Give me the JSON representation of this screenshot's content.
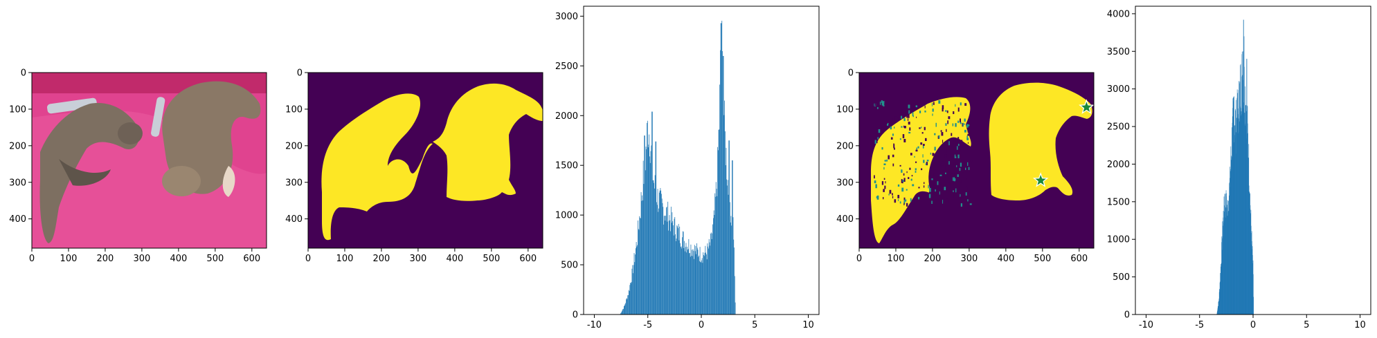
{
  "chart_data": [
    {
      "type": "image",
      "content": "photo of two cats sleeping on a pink blanket with remote controls",
      "xlim": [
        0,
        640
      ],
      "ylim": [
        480,
        0
      ],
      "xticks": [
        0,
        100,
        200,
        300,
        400,
        500,
        600
      ],
      "yticks": [
        0,
        100,
        200,
        300,
        400
      ],
      "colors": {
        "background": "#e0438f",
        "shadow": "#c12a6b",
        "cat": "#7d6f61"
      }
    },
    {
      "type": "image",
      "content": "binary segmentation mask (viridis): two cat silhouettes",
      "xlim": [
        0,
        640
      ],
      "ylim": [
        480,
        0
      ],
      "xticks": [
        0,
        100,
        200,
        300,
        400,
        500,
        600
      ],
      "yticks": [
        0,
        100,
        200,
        300,
        400
      ],
      "colors": {
        "background": "#440154",
        "mask": "#fde725"
      }
    },
    {
      "type": "histogram",
      "bin_width": 0.05,
      "xlim": [
        -11,
        11
      ],
      "ylim": [
        0,
        3100
      ],
      "xticks": [
        -10,
        -5,
        0,
        5,
        10
      ],
      "yticks": [
        0,
        500,
        1000,
        1500,
        2000,
        2500,
        3000
      ],
      "color": "#1f77b4",
      "profile_x": [
        -7.6,
        -7.2,
        -6.8,
        -6.4,
        -6.0,
        -5.7,
        -5.4,
        -5.2,
        -5.0,
        -4.8,
        -4.6,
        -4.4,
        -4.0,
        -3.5,
        -3.0,
        -2.5,
        -2.0,
        -1.5,
        -1.0,
        -0.5,
        0.0,
        0.5,
        0.9,
        1.2,
        1.5,
        1.7,
        1.85,
        2.0,
        2.2,
        2.5,
        2.8,
        3.0,
        3.1,
        3.2
      ],
      "profile_y": [
        0,
        80,
        220,
        450,
        750,
        1050,
        1400,
        1600,
        1900,
        1800,
        1500,
        1300,
        1150,
        1050,
        980,
        880,
        800,
        730,
        680,
        640,
        600,
        620,
        720,
        950,
        1400,
        2000,
        2900,
        2400,
        1800,
        1300,
        1000,
        900,
        500,
        0
      ],
      "peaks": [
        {
          "x": -5.3,
          "y": 1800
        },
        {
          "x": -4.6,
          "y": 2040
        },
        {
          "x": -4.25,
          "y": 1740
        },
        {
          "x": 1.85,
          "y": 2930
        },
        {
          "x": 2.05,
          "y": 2600
        },
        {
          "x": 2.6,
          "y": 1750
        },
        {
          "x": 2.9,
          "y": 1550
        }
      ]
    },
    {
      "type": "image",
      "content": "predicted mask (viridis) with two star prompt points",
      "xlim": [
        0,
        640
      ],
      "ylim": [
        480,
        0
      ],
      "xticks": [
        0,
        100,
        200,
        300,
        400,
        500,
        600
      ],
      "yticks": [
        0,
        100,
        200,
        300,
        400
      ],
      "colors": {
        "background": "#440154",
        "mask": "#fde725",
        "speckle": "#21918c",
        "star": "#1a8a3a",
        "star_edge": "#ffffff"
      },
      "points": [
        {
          "x": 620,
          "y": 95
        },
        {
          "x": 495,
          "y": 295
        }
      ]
    },
    {
      "type": "histogram",
      "bin_width": 0.02,
      "xlim": [
        -11,
        11
      ],
      "ylim": [
        0,
        4100
      ],
      "xticks": [
        -10,
        -5,
        0,
        5,
        10
      ],
      "yticks": [
        0,
        500,
        1000,
        1500,
        2000,
        2500,
        3000,
        3500,
        4000
      ],
      "color": "#1f77b4",
      "profile_x": [
        -3.4,
        -3.2,
        -3.0,
        -2.8,
        -2.6,
        -2.4,
        -2.2,
        -2.0,
        -1.8,
        -1.6,
        -1.4,
        -1.2,
        -1.0,
        -0.8,
        -0.6,
        -0.4,
        -0.2,
        0.0,
        0.05
      ],
      "profile_y": [
        0,
        200,
        700,
        1300,
        1500,
        1400,
        1700,
        2300,
        2700,
        2500,
        2700,
        3000,
        3200,
        3000,
        2700,
        2000,
        1200,
        600,
        0
      ],
      "peaks": [
        {
          "x": -2.65,
          "y": 1600
        },
        {
          "x": -2.5,
          "y": 1570
        },
        {
          "x": -1.95,
          "y": 2550
        },
        {
          "x": -1.8,
          "y": 2900
        },
        {
          "x": -1.65,
          "y": 2600
        },
        {
          "x": -1.5,
          "y": 2880
        },
        {
          "x": -1.25,
          "y": 3050
        },
        {
          "x": -0.95,
          "y": 3500
        },
        {
          "x": -0.9,
          "y": 3920
        },
        {
          "x": -0.85,
          "y": 3700
        },
        {
          "x": -0.6,
          "y": 3400
        }
      ]
    }
  ]
}
